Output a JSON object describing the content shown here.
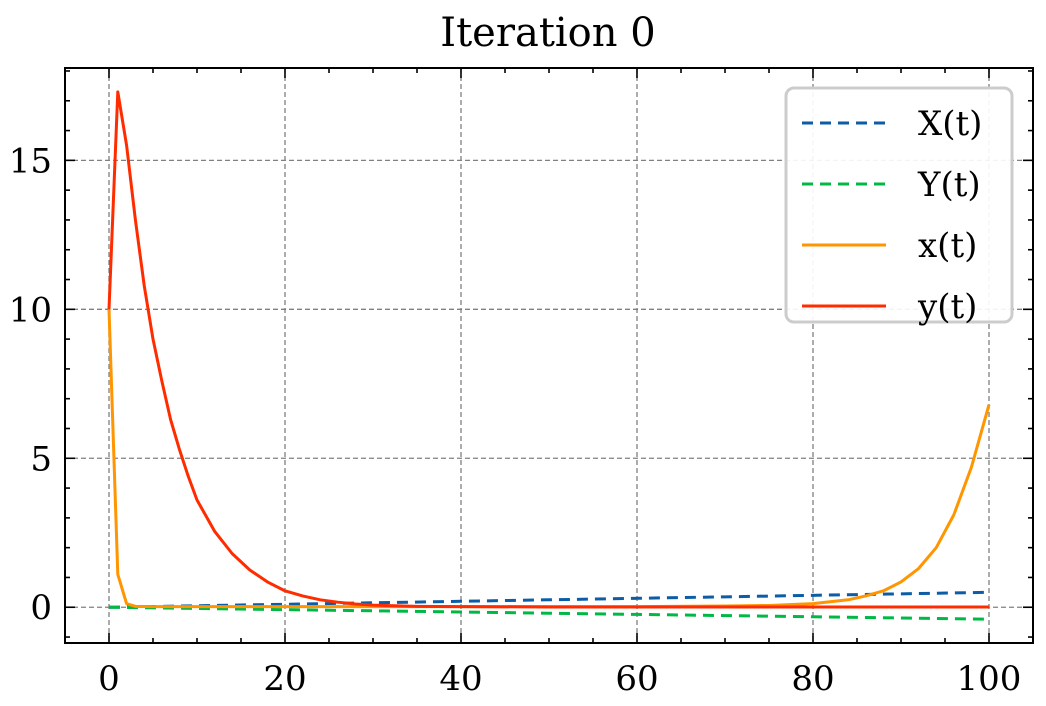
{
  "chart_data": {
    "type": "line",
    "title": "Iteration 0",
    "xlabel": "",
    "ylabel": "",
    "xlim": [
      -5,
      105
    ],
    "ylim": [
      -1.2,
      18.1
    ],
    "xticks": [
      0,
      20,
      40,
      60,
      80,
      100
    ],
    "yticks": [
      0,
      5,
      10,
      15
    ],
    "xtick_labels": [
      "0",
      "20",
      "40",
      "60",
      "80",
      "100"
    ],
    "ytick_labels": [
      "0",
      "5",
      "10",
      "15"
    ],
    "grid": true,
    "legend_position": "top-right",
    "series": [
      {
        "name": "X(t)",
        "style": "dashed",
        "color": "#0C5DA5",
        "x": [
          0,
          10,
          20,
          30,
          40,
          50,
          60,
          70,
          80,
          90,
          100
        ],
        "y": [
          0,
          0.05,
          0.1,
          0.15,
          0.2,
          0.25,
          0.3,
          0.35,
          0.4,
          0.45,
          0.5
        ]
      },
      {
        "name": "Y(t)",
        "style": "dashed",
        "color": "#00B945",
        "x": [
          0,
          10,
          20,
          30,
          40,
          50,
          60,
          70,
          80,
          90,
          100
        ],
        "y": [
          0,
          -0.04,
          -0.08,
          -0.12,
          -0.16,
          -0.2,
          -0.24,
          -0.28,
          -0.32,
          -0.36,
          -0.4
        ]
      },
      {
        "name": "x(t)",
        "style": "solid",
        "color": "#FF9500",
        "x": [
          0,
          1,
          2,
          3,
          5,
          10,
          20,
          30,
          40,
          50,
          60,
          70,
          75,
          80,
          84,
          86,
          88,
          90,
          92,
          94,
          96,
          98,
          100
        ],
        "y": [
          10,
          1.1,
          0.12,
          0.03,
          0.02,
          0.02,
          0.02,
          0.02,
          0.02,
          0.02,
          0.02,
          0.04,
          0.06,
          0.12,
          0.25,
          0.38,
          0.55,
          0.85,
          1.3,
          2.0,
          3.1,
          4.7,
          6.8
        ]
      },
      {
        "name": "y(t)",
        "style": "solid",
        "color": "#FF2C00",
        "x": [
          0,
          1,
          2,
          3,
          4,
          5,
          6,
          7,
          8,
          9,
          10,
          12,
          14,
          16,
          18,
          20,
          22,
          24,
          26,
          28,
          30,
          35,
          40,
          50,
          60,
          70,
          80,
          90,
          100
        ],
        "y": [
          10,
          17.3,
          15.5,
          13.0,
          10.8,
          9.0,
          7.6,
          6.3,
          5.3,
          4.4,
          3.6,
          2.55,
          1.8,
          1.25,
          0.85,
          0.55,
          0.38,
          0.25,
          0.17,
          0.11,
          0.07,
          0.03,
          0.02,
          0.01,
          0.01,
          0.01,
          0.01,
          0.01,
          0.01
        ]
      }
    ]
  }
}
